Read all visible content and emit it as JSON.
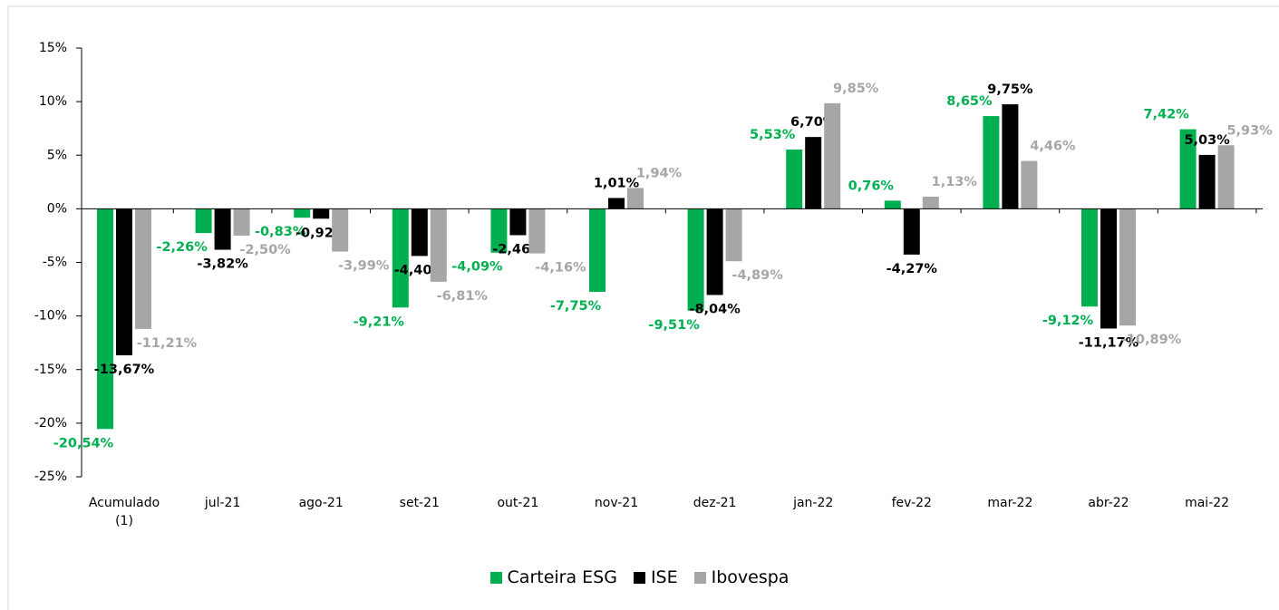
{
  "chart_data": {
    "type": "bar",
    "categories": [
      "Acumulado (1)",
      "jul-21",
      "ago-21",
      "set-21",
      "out-21",
      "nov-21",
      "dez-21",
      "jan-22",
      "fev-22",
      "mar-22",
      "abr-22",
      "mai-22"
    ],
    "series": [
      {
        "name": "Carteira ESG",
        "color": "#00b050",
        "values": [
          -20.54,
          -2.26,
          -0.83,
          -9.21,
          -4.09,
          -7.75,
          -9.51,
          5.53,
          0.76,
          8.65,
          -9.12,
          7.42
        ],
        "value_labels": [
          "-20,54%",
          "-2,26%",
          "-0,83%",
          "-9,21%",
          "-4,09%",
          "-7,75%",
          "-9,51%",
          "5,53%",
          "0,76%",
          "8,65%",
          "-9,12%",
          "7,42%"
        ]
      },
      {
        "name": "ISE",
        "color": "#000000",
        "values": [
          -13.67,
          -3.82,
          -0.92,
          -4.4,
          -2.46,
          1.01,
          -8.04,
          6.7,
          -4.27,
          9.75,
          -11.17,
          5.03
        ],
        "value_labels": [
          "-13,67%",
          "-3,82%",
          "-0,92%",
          "-4,40%",
          "-2,46%",
          "1,01%",
          "-8,04%",
          "6,70%",
          "-4,27%",
          "9,75%",
          "-11,17%",
          "5,03%"
        ]
      },
      {
        "name": "Ibovespa",
        "color": "#a6a6a6",
        "values": [
          -11.21,
          -2.5,
          -3.99,
          -6.81,
          -4.16,
          1.94,
          -4.89,
          9.85,
          1.13,
          4.46,
          -10.89,
          5.93
        ],
        "value_labels": [
          "-11,21%",
          "-2,50%",
          "-3,99%",
          "-6,81%",
          "-4,16%",
          "1,94%",
          "-4,89%",
          "9,85%",
          "1,13%",
          "4,46%",
          "-10,89%",
          "5,93%"
        ]
      }
    ],
    "ylim": [
      -25,
      15
    ],
    "yticks": [
      {
        "value": -25,
        "label": "-25%"
      },
      {
        "value": -20,
        "label": "-20%"
      },
      {
        "value": -15,
        "label": "-15%"
      },
      {
        "value": -10,
        "label": "-10%"
      },
      {
        "value": -5,
        "label": "-5%"
      },
      {
        "value": 0,
        "label": "0%"
      },
      {
        "value": 5,
        "label": "5%"
      },
      {
        "value": 10,
        "label": "10%"
      },
      {
        "value": 15,
        "label": "15%"
      }
    ],
    "legend": "bottom"
  }
}
